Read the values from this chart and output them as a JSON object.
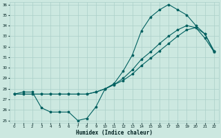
{
  "xlabel": "Humidex (Indice chaleur)",
  "bg_color": "#cce8e0",
  "grid_color": "#aacfc8",
  "line_color": "#006060",
  "xlim": [
    -0.5,
    22.5
  ],
  "ylim": [
    24.8,
    36.2
  ],
  "xticks": [
    0,
    1,
    2,
    3,
    4,
    5,
    6,
    7,
    8,
    9,
    10,
    11,
    12,
    13,
    14,
    15,
    16,
    17,
    18,
    19,
    20,
    21,
    22
  ],
  "yticks": [
    25,
    26,
    27,
    28,
    29,
    30,
    31,
    32,
    33,
    34,
    35,
    36
  ],
  "curve1_x": [
    0,
    1,
    2,
    3,
    4,
    5,
    6,
    7,
    8,
    9,
    10,
    11,
    12,
    13,
    14,
    15,
    16,
    17,
    18,
    19,
    20,
    21,
    22
  ],
  "curve1_y": [
    27.5,
    27.7,
    27.7,
    26.2,
    25.8,
    25.8,
    25.8,
    25.0,
    25.2,
    26.3,
    28.0,
    28.5,
    29.7,
    31.2,
    33.5,
    34.8,
    35.5,
    36.0,
    35.5,
    35.0,
    34.0,
    33.2,
    31.6
  ],
  "curve2_x": [
    0,
    1,
    2,
    3,
    4,
    5,
    6,
    7,
    8,
    9,
    10,
    11,
    12,
    13,
    14,
    15,
    16,
    17,
    18,
    19,
    20,
    21,
    22
  ],
  "curve2_y": [
    27.5,
    27.5,
    27.5,
    27.5,
    27.5,
    27.5,
    27.5,
    27.5,
    27.5,
    27.7,
    28.0,
    28.4,
    28.8,
    29.4,
    30.2,
    30.9,
    31.6,
    32.3,
    33.0,
    33.6,
    33.8,
    33.2,
    31.5
  ],
  "curve3_x": [
    0,
    1,
    2,
    3,
    4,
    5,
    6,
    7,
    8,
    9,
    10,
    11,
    12,
    13,
    14,
    15,
    16,
    17,
    18,
    19,
    20,
    21,
    22
  ],
  "curve3_y": [
    27.5,
    27.5,
    27.5,
    27.5,
    27.5,
    27.5,
    27.5,
    27.5,
    27.5,
    27.7,
    28.0,
    28.4,
    29.0,
    29.8,
    30.8,
    31.5,
    32.3,
    33.0,
    33.6,
    34.0,
    33.8,
    32.8,
    31.5
  ]
}
